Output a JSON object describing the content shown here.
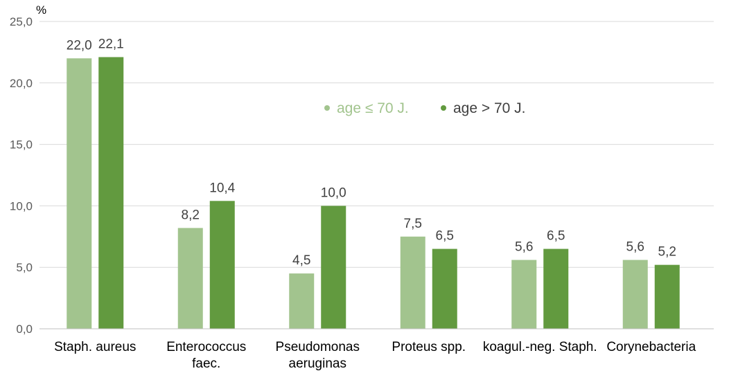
{
  "chart_data": {
    "type": "bar",
    "ylabel": "%",
    "ylim": [
      0,
      25
    ],
    "yticks": [
      "0,0",
      "5,0",
      "10,0",
      "15,0",
      "20,0",
      "25,0"
    ],
    "ytick_values": [
      0,
      5,
      10,
      15,
      20,
      25
    ],
    "grid": true,
    "legend_position": "upper-center",
    "categories": [
      [
        "Staph. aureus"
      ],
      [
        "Enterococcus",
        "faec."
      ],
      [
        "Pseudomonas",
        "aeruginas"
      ],
      [
        "Proteus spp."
      ],
      [
        "koagul.-neg. Staph."
      ],
      [
        "Corynebacteria"
      ]
    ],
    "series": [
      {
        "name": "age ≤ 70 J.",
        "color": "#a2c48e",
        "values": [
          22.0,
          8.2,
          4.5,
          7.5,
          5.6,
          5.6
        ],
        "labels": [
          "22,0",
          "8,2",
          "4,5",
          "7,5",
          "5,6",
          "5,6"
        ]
      },
      {
        "name": "age > 70 J.",
        "color": "#629a3f",
        "values": [
          22.1,
          10.4,
          10.0,
          6.5,
          6.5,
          5.2
        ],
        "labels": [
          "22,1",
          "10,4",
          "10,0",
          "6,5",
          "6,5",
          "5,2"
        ]
      }
    ]
  }
}
